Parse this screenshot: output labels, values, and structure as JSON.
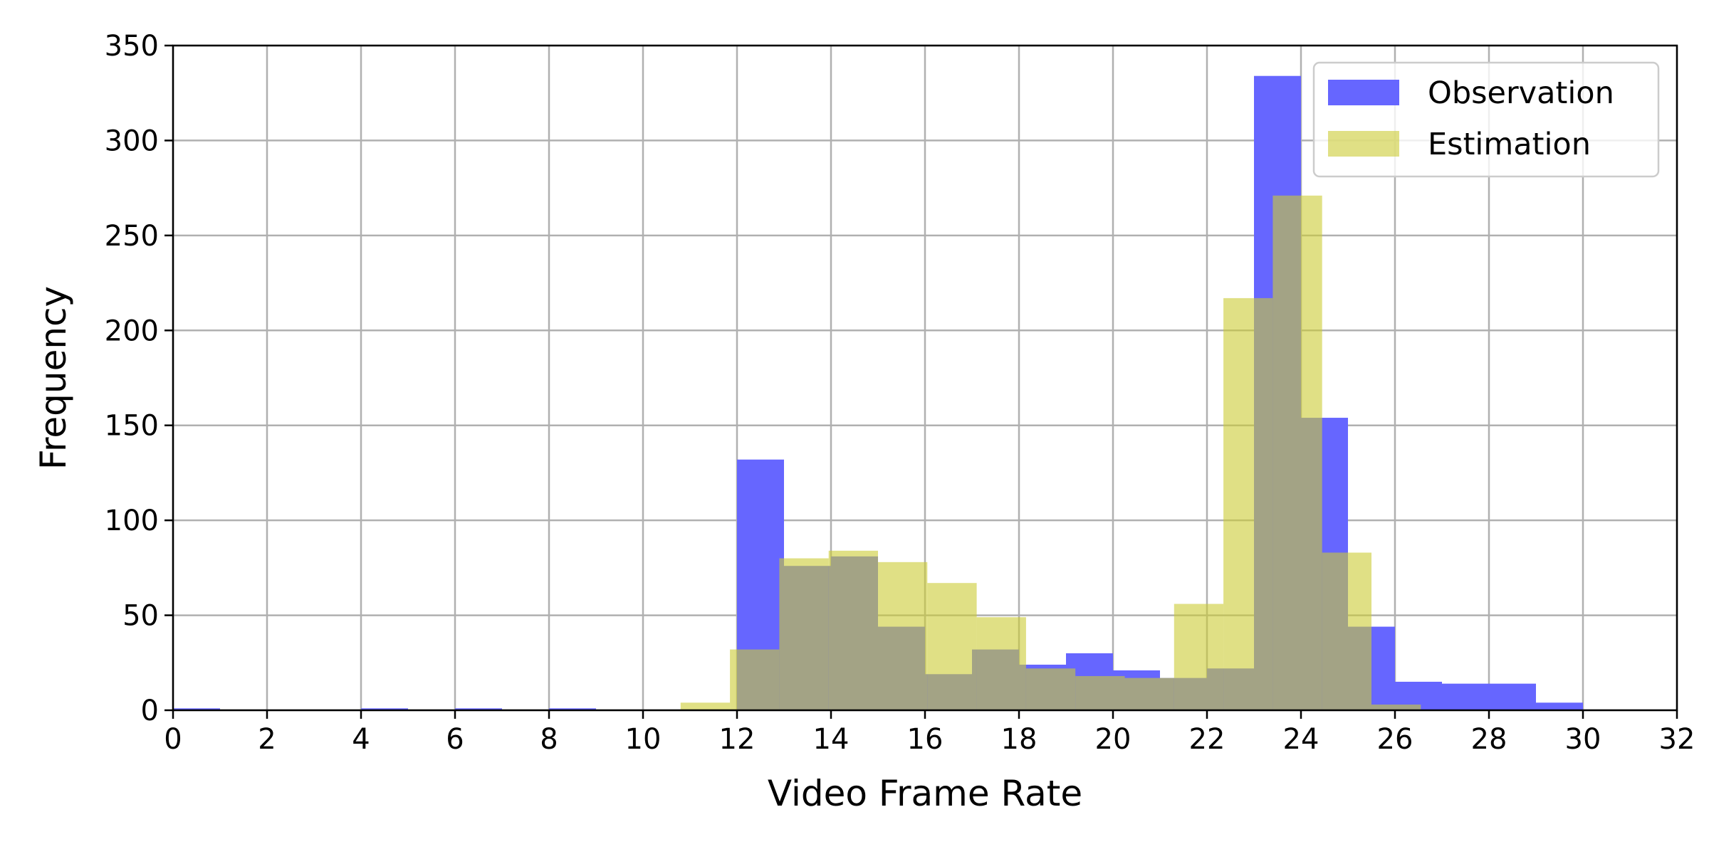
{
  "chart_data": {
    "type": "bar",
    "xlabel": "Video Frame Rate",
    "ylabel": "Frequency",
    "xlim": [
      0,
      32
    ],
    "ylim": [
      0,
      350
    ],
    "xticks": [
      0,
      2,
      4,
      6,
      8,
      10,
      12,
      14,
      16,
      18,
      20,
      22,
      24,
      26,
      28,
      30,
      32
    ],
    "yticks": [
      0,
      50,
      100,
      150,
      200,
      250,
      300,
      350
    ],
    "grid": true,
    "legend_position": "top-right",
    "series": [
      {
        "name": "Observation",
        "color": "#6666ff",
        "bins": [
          {
            "x0": 0,
            "x1": 1,
            "value": 1
          },
          {
            "x0": 4,
            "x1": 5,
            "value": 1
          },
          {
            "x0": 6,
            "x1": 7,
            "value": 1
          },
          {
            "x0": 8,
            "x1": 9,
            "value": 1
          },
          {
            "x0": 12,
            "x1": 13,
            "value": 132
          },
          {
            "x0": 13,
            "x1": 14,
            "value": 76
          },
          {
            "x0": 14,
            "x1": 15,
            "value": 81
          },
          {
            "x0": 15,
            "x1": 16,
            "value": 44
          },
          {
            "x0": 16,
            "x1": 17,
            "value": 19
          },
          {
            "x0": 17,
            "x1": 18,
            "value": 32
          },
          {
            "x0": 18,
            "x1": 19,
            "value": 24
          },
          {
            "x0": 19,
            "x1": 20,
            "value": 30
          },
          {
            "x0": 20,
            "x1": 21,
            "value": 21
          },
          {
            "x0": 21,
            "x1": 22,
            "value": 17
          },
          {
            "x0": 22,
            "x1": 23,
            "value": 22
          },
          {
            "x0": 23,
            "x1": 24,
            "value": 334
          },
          {
            "x0": 24,
            "x1": 25,
            "value": 154
          },
          {
            "x0": 25,
            "x1": 26,
            "value": 44
          },
          {
            "x0": 26,
            "x1": 27,
            "value": 15
          },
          {
            "x0": 27,
            "x1": 28,
            "value": 14
          },
          {
            "x0": 28,
            "x1": 29,
            "value": 14
          },
          {
            "x0": 29,
            "x1": 30,
            "value": 4
          }
        ]
      },
      {
        "name": "Estimation",
        "color": "#cccc33",
        "bins": [
          {
            "x0": 10.8,
            "x1": 11.85,
            "value": 4
          },
          {
            "x0": 11.85,
            "x1": 12.9,
            "value": 32
          },
          {
            "x0": 12.9,
            "x1": 13.95,
            "value": 80
          },
          {
            "x0": 13.95,
            "x1": 15.0,
            "value": 84
          },
          {
            "x0": 15.0,
            "x1": 16.05,
            "value": 78
          },
          {
            "x0": 16.05,
            "x1": 17.1,
            "value": 67
          },
          {
            "x0": 17.1,
            "x1": 18.15,
            "value": 49
          },
          {
            "x0": 18.15,
            "x1": 19.2,
            "value": 22
          },
          {
            "x0": 19.2,
            "x1": 20.25,
            "value": 18
          },
          {
            "x0": 20.25,
            "x1": 21.3,
            "value": 17
          },
          {
            "x0": 21.3,
            "x1": 22.35,
            "value": 56
          },
          {
            "x0": 22.35,
            "x1": 23.4,
            "value": 217
          },
          {
            "x0": 23.4,
            "x1": 24.45,
            "value": 271
          },
          {
            "x0": 24.45,
            "x1": 25.5,
            "value": 83
          },
          {
            "x0": 25.5,
            "x1": 26.55,
            "value": 3
          }
        ]
      }
    ]
  }
}
